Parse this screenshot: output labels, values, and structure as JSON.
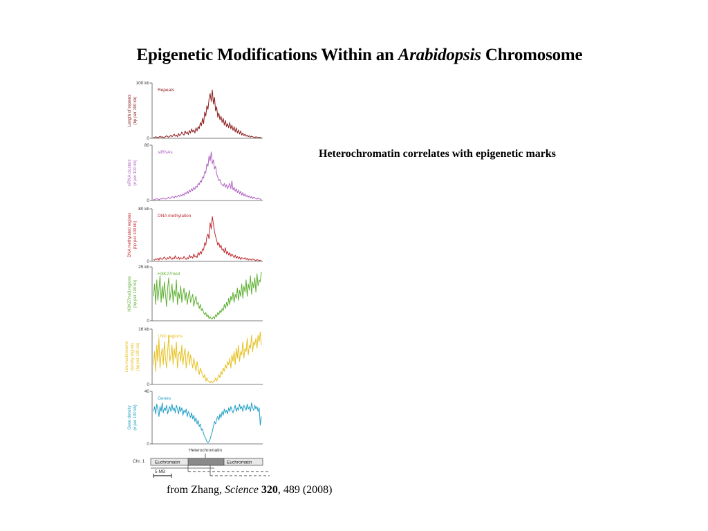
{
  "slide": {
    "title_pre": "Epigenetic Modifications Within an ",
    "title_italic": "Arabidopsis",
    "title_post": " Chromosome",
    "subtitle": "Heterochromatin correlates with epigenetic marks",
    "citation_author": "from Zhang, ",
    "citation_journal": "Science",
    "citation_volume": "320",
    "citation_rest": ", 489 (2008)"
  },
  "chart_data": {
    "type": "line",
    "x_unit": "position along chromosome (relative)",
    "panels": [
      {
        "name": "Repeats",
        "ylabel_1": "Length of repeats",
        "ylabel_2": "(bp per 100 kb)",
        "ymax_label": "100 kb",
        "ymin_label": "0",
        "ylim": [
          0,
          100
        ],
        "color": "#8b1a1a",
        "values": [
          2,
          1,
          3,
          2,
          1,
          2,
          4,
          2,
          3,
          1,
          2,
          3,
          5,
          3,
          2,
          4,
          6,
          3,
          5,
          8,
          4,
          6,
          3,
          9,
          5,
          7,
          12,
          8,
          6,
          14,
          9,
          12,
          7,
          15,
          10,
          18,
          12,
          16,
          10,
          20,
          14,
          22,
          18,
          30,
          24,
          38,
          28,
          50,
          42,
          62,
          55,
          75,
          85,
          70,
          92,
          65,
          78,
          52,
          60,
          40,
          48,
          35,
          42,
          30,
          38,
          25,
          34,
          22,
          28,
          20,
          30,
          18,
          25,
          15,
          22,
          12,
          20,
          10,
          16,
          8,
          14,
          6,
          10,
          5,
          8,
          4,
          6,
          3,
          5,
          2,
          4,
          3,
          2,
          1,
          3,
          2,
          1,
          2,
          1,
          2
        ],
        "label_y": 33
      },
      {
        "name": "siRNAs",
        "ylabel_1": "siRNA clusters",
        "ylabel_2": "(# per 100 kb)",
        "ymax_label": "80",
        "ymin_label": "0",
        "ylim": [
          0,
          80
        ],
        "color": "#b060c0",
        "values": [
          2,
          1,
          2,
          3,
          2,
          1,
          2,
          3,
          2,
          4,
          3,
          2,
          3,
          4,
          5,
          3,
          4,
          6,
          5,
          4,
          7,
          5,
          6,
          8,
          6,
          9,
          7,
          10,
          8,
          12,
          10,
          14,
          11,
          16,
          13,
          18,
          15,
          20,
          17,
          22,
          20,
          26,
          24,
          30,
          28,
          36,
          34,
          44,
          42,
          56,
          52,
          68,
          60,
          74,
          56,
          62,
          48,
          52,
          40,
          36,
          30,
          32,
          26,
          24,
          22,
          26,
          20,
          24,
          18,
          22,
          26,
          18,
          30,
          16,
          20,
          14,
          18,
          12,
          16,
          10,
          14,
          8,
          12,
          7,
          10,
          6,
          8,
          5,
          7,
          4,
          6,
          3,
          5,
          4,
          3,
          2,
          4,
          3,
          2,
          1
        ],
        "label_y": 113
      },
      {
        "name": "DNA methylation",
        "ylabel_1": "DNA methylated regions",
        "ylabel_2": "(bp per 100 kb)",
        "ymax_label": "80 kb",
        "ymin_label": "0",
        "ylim": [
          0,
          80
        ],
        "color": "#c0282d",
        "values": [
          3,
          2,
          4,
          3,
          5,
          2,
          6,
          4,
          3,
          5,
          7,
          4,
          3,
          6,
          4,
          8,
          5,
          3,
          6,
          4,
          9,
          5,
          4,
          7,
          3,
          6,
          5,
          4,
          8,
          5,
          3,
          6,
          4,
          10,
          6,
          8,
          5,
          12,
          7,
          9,
          6,
          14,
          10,
          16,
          12,
          20,
          18,
          30,
          26,
          40,
          44,
          36,
          62,
          52,
          72,
          60,
          48,
          40,
          34,
          26,
          30,
          22,
          26,
          18,
          20,
          14,
          22,
          12,
          16,
          10,
          14,
          8,
          12,
          9,
          6,
          10,
          5,
          8,
          4,
          7,
          3,
          6,
          5,
          4,
          6,
          3,
          5,
          2,
          4,
          3,
          2,
          4,
          3,
          2,
          1,
          3,
          2,
          1,
          2,
          1
        ],
        "label_y": 203
      },
      {
        "name": "H3K27me3",
        "ylabel_1": "H3K27me3 regions",
        "ylabel_2": "(bp per 100 kb)",
        "ymax_label": "25 kb",
        "ymin_label": "0",
        "ylim": [
          0,
          25
        ],
        "color": "#5cb030",
        "values": [
          12,
          18,
          8,
          20,
          10,
          15,
          22,
          9,
          17,
          11,
          19,
          13,
          7,
          16,
          21,
          10,
          14,
          18,
          9,
          15,
          12,
          20,
          8,
          14,
          11,
          17,
          9,
          13,
          16,
          10,
          14,
          8,
          12,
          15,
          9,
          11,
          13,
          7,
          10,
          12,
          8,
          9,
          6,
          8,
          5,
          6,
          4,
          3,
          4,
          2,
          3,
          1,
          2,
          1,
          1,
          2,
          1,
          3,
          2,
          4,
          3,
          5,
          4,
          6,
          5,
          8,
          6,
          9,
          7,
          11,
          8,
          12,
          10,
          14,
          9,
          13,
          11,
          16,
          10,
          15,
          12,
          18,
          11,
          17,
          14,
          20,
          12,
          18,
          15,
          22,
          13,
          19,
          16,
          21,
          14,
          23,
          17,
          20,
          19,
          24
        ],
        "label_y": 277
      },
      {
        "name": "LND regions",
        "ylabel_1": "Low nucleosome",
        "ylabel_2": "density regions",
        "ylabel_3": "(bp per 100 kb)",
        "ymax_label": "16 kb",
        "ymin_label": "0",
        "ylim": [
          0,
          16
        ],
        "color": "#e6c01e",
        "values": [
          6,
          10,
          4,
          12,
          7,
          14,
          5,
          9,
          11,
          6,
          13,
          8,
          5,
          10,
          15,
          7,
          9,
          12,
          6,
          11,
          8,
          13,
          5,
          9,
          10,
          7,
          12,
          6,
          9,
          11,
          5,
          8,
          10,
          6,
          9,
          7,
          5,
          8,
          6,
          4,
          7,
          5,
          3,
          5,
          4,
          3,
          2,
          3,
          1,
          2,
          1,
          1,
          0.5,
          1,
          0.5,
          1,
          1,
          2,
          1,
          2,
          3,
          2,
          4,
          3,
          5,
          4,
          6,
          5,
          7,
          6,
          8,
          5,
          9,
          7,
          10,
          6,
          11,
          8,
          12,
          7,
          10,
          9,
          13,
          8,
          11,
          10,
          14,
          9,
          12,
          11,
          15,
          10,
          13,
          12,
          14,
          11,
          15,
          13,
          16,
          12
        ],
        "label_y": 367
      },
      {
        "name": "Genes",
        "ylabel_1": "Gene density",
        "ylabel_2": "(# per 100 kb)",
        "ymax_label": "40",
        "ymin_label": "0",
        "ylim": [
          0,
          40
        ],
        "color": "#1f9ec4",
        "values": [
          26,
          30,
          24,
          32,
          28,
          22,
          30,
          26,
          33,
          25,
          29,
          27,
          31,
          24,
          28,
          30,
          26,
          32,
          27,
          29,
          25,
          31,
          28,
          24,
          30,
          26,
          29,
          23,
          27,
          25,
          28,
          22,
          26,
          24,
          21,
          25,
          20,
          23,
          18,
          21,
          16,
          19,
          14,
          16,
          11,
          12,
          8,
          6,
          4,
          2,
          1,
          2,
          4,
          7,
          10,
          14,
          18,
          16,
          20,
          22,
          19,
          24,
          21,
          26,
          23,
          28,
          25,
          27,
          24,
          29,
          26,
          30,
          27,
          25,
          28,
          31,
          26,
          29,
          27,
          32,
          28,
          30,
          26,
          31,
          29,
          27,
          32,
          28,
          30,
          26,
          33,
          29,
          27,
          31,
          28,
          30,
          26,
          29,
          15,
          22
        ],
        "label_y": 458
      }
    ],
    "heterochromatin_label": "Heterochromatin",
    "chr_label": "Chr. 1",
    "euchromatin_left": "Euchromatin",
    "euchromatin_right": "Euchromatin",
    "scale_label": "5 MB"
  }
}
